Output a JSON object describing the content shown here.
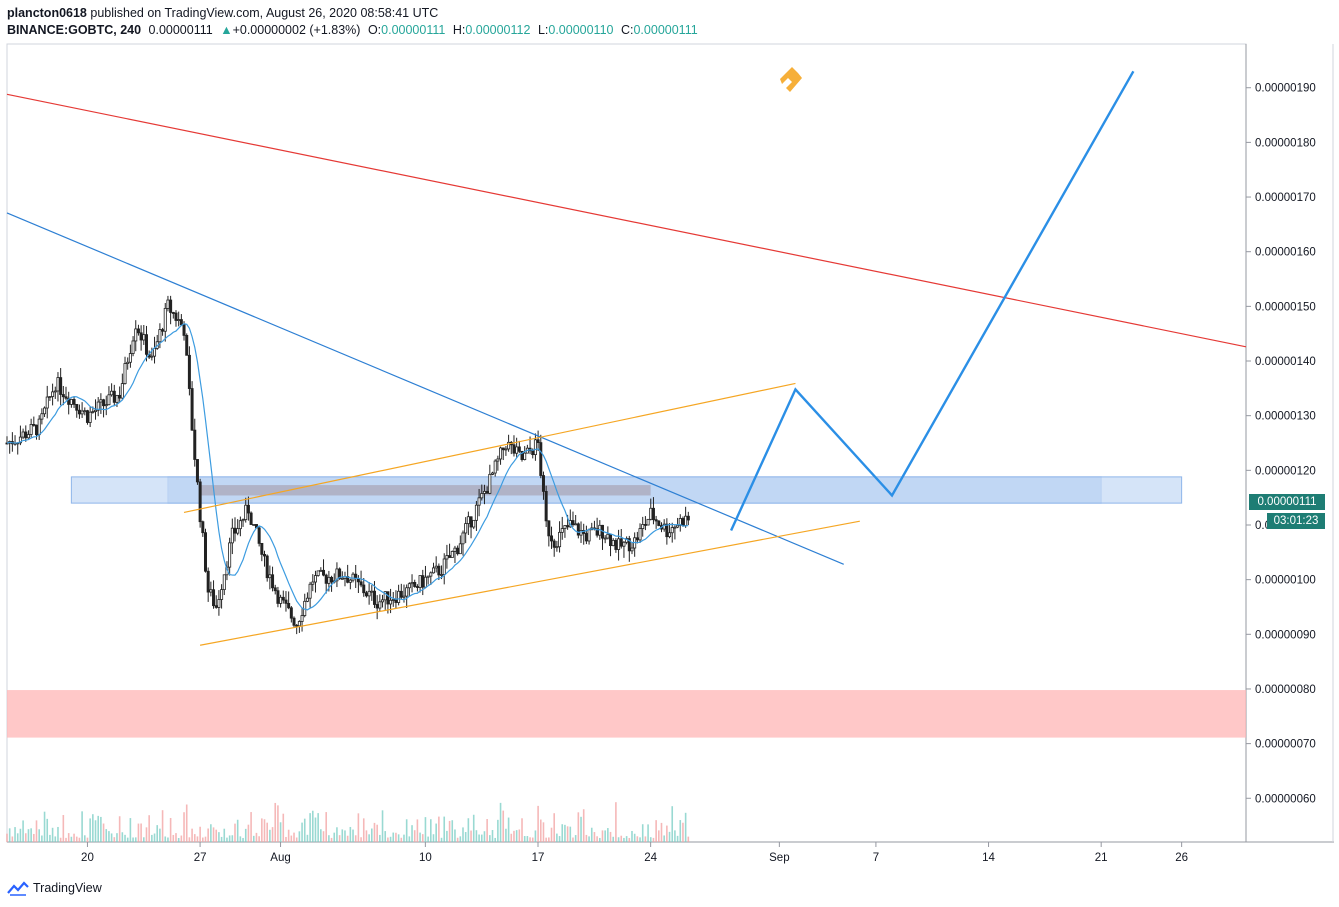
{
  "header": {
    "publisher_line": "plancton0618 published on TradingView.com, August 26, 2020 08:58:41 UTC",
    "publisher_name": "plancton0618",
    "publisher_rest": " published on TradingView.com, August 26, 2020 08:58:41 UTC",
    "symbol": "BINANCE:GOBTC, 240",
    "last_price": "0.00000111",
    "change_arrow": "▲",
    "change": "+0.00000002 (+1.83%)",
    "o_label": "O:",
    "o_value": "0.00000111",
    "h_label": "H:",
    "h_value": "0.00000112",
    "l_label": "L:",
    "l_value": "0.00000110",
    "c_label": "C:",
    "c_value": "0.00000111"
  },
  "price_tag": {
    "value": "0.00000111",
    "countdown": "03:01:23",
    "color": "#1e7d74"
  },
  "footer": {
    "brand": "TradingView",
    "logo_icon": "tradingview-cloud-icon"
  },
  "watermark_icon": "orange-hook-logo-icon",
  "chart_data": {
    "type": "candlestick",
    "symbol": "BINANCE:GOBTC",
    "interval": "240",
    "y_ticks": [
      "0.00000190",
      "0.00000180",
      "0.00000170",
      "0.00000160",
      "0.00000150",
      "0.00000140",
      "0.00000130",
      "0.00000120",
      "0.00000110",
      "0.00000100",
      "0.00000090",
      "0.00000080",
      "0.00000070",
      "0.00000060"
    ],
    "y_tick_values": [
      190,
      180,
      170,
      160,
      150,
      140,
      130,
      120,
      110,
      100,
      90,
      80,
      70,
      60
    ],
    "y_unit_scale": "1e-8 BTC (satoshi)",
    "ylim": [
      52,
      198
    ],
    "x_ticks": [
      "20",
      "27",
      "Aug",
      "10",
      "17",
      "24",
      "Sep",
      "7",
      "14",
      "21",
      "26"
    ],
    "x_tick_dates": [
      "2020-07-20",
      "2020-07-27",
      "2020-08-01",
      "2020-08-10",
      "2020-08-17",
      "2020-08-24",
      "2020-09-01",
      "2020-09-07",
      "2020-09-14",
      "2020-09-21",
      "2020-09-26"
    ],
    "xlim": [
      "2020-07-15",
      "2020-09-30"
    ],
    "price_path_sat": [
      [
        "2020-07-15",
        125
      ],
      [
        "2020-07-17",
        128
      ],
      [
        "2020-07-18",
        136
      ],
      [
        "2020-07-20",
        130
      ],
      [
        "2020-07-22",
        134
      ],
      [
        "2020-07-23",
        147
      ],
      [
        "2020-07-24",
        140
      ],
      [
        "2020-07-25",
        150
      ],
      [
        "2020-07-26",
        146
      ],
      [
        "2020-07-26.5",
        128
      ],
      [
        "2020-07-27",
        112
      ],
      [
        "2020-07-27.5",
        98
      ],
      [
        "2020-07-28",
        95
      ],
      [
        "2020-07-29",
        108
      ],
      [
        "2020-07-30",
        113
      ],
      [
        "2020-07-31",
        103
      ],
      [
        "2020-08-01",
        96
      ],
      [
        "2020-08-02",
        92
      ],
      [
        "2020-08-03",
        100
      ],
      [
        "2020-08-05",
        101
      ],
      [
        "2020-08-07",
        96
      ],
      [
        "2020-08-09",
        98
      ],
      [
        "2020-08-10",
        100
      ],
      [
        "2020-08-11",
        102
      ],
      [
        "2020-08-12",
        106
      ],
      [
        "2020-08-13",
        112
      ],
      [
        "2020-08-14",
        118
      ],
      [
        "2020-08-15",
        125
      ],
      [
        "2020-08-16",
        122
      ],
      [
        "2020-08-17",
        125
      ],
      [
        "2020-08-17.5",
        110
      ],
      [
        "2020-08-18",
        107
      ],
      [
        "2020-08-19",
        110
      ],
      [
        "2020-08-20",
        108
      ],
      [
        "2020-08-21",
        109
      ],
      [
        "2020-08-22",
        106
      ],
      [
        "2020-08-23",
        107
      ],
      [
        "2020-08-24",
        112
      ],
      [
        "2020-08-25",
        109
      ],
      [
        "2020-08-26",
        111
      ]
    ],
    "moving_average_color": "#3d9ce0",
    "volume_note": "volume bars along bottom, peak on 2020-08-17",
    "drawings": [
      {
        "kind": "trendline",
        "color": "#e53935",
        "from": [
          "2020-07-15",
          188.8
        ],
        "to": [
          "2020-09-30",
          142.6
        ]
      },
      {
        "kind": "trendline",
        "color": "#2d7fd3",
        "from": [
          "2020-07-15",
          167.1
        ],
        "to": [
          "2020-09-05",
          102.8
        ]
      },
      {
        "kind": "channel-upper",
        "color": "#f5a623",
        "from": [
          "2020-07-26",
          112.3
        ],
        "to": [
          "2020-09-02",
          135.9
        ]
      },
      {
        "kind": "channel-lower",
        "color": "#f5a623",
        "from": [
          "2020-07-27",
          88.0
        ],
        "to": [
          "2020-09-06",
          110.7
        ]
      },
      {
        "kind": "resistance-zone",
        "color": "#8fb5ea",
        "top": 118.8,
        "bottom": 114.0,
        "from": "2020-07-25",
        "to": "2020-09-21"
      },
      {
        "kind": "resistance-zone-light",
        "color": "#c7dbf5",
        "top": 118.8,
        "bottom": 114.0,
        "from": "2020-07-19",
        "to": "2020-09-26"
      },
      {
        "kind": "grey-box",
        "color": "#a9a7b8",
        "top": 117.3,
        "bottom": 115.4,
        "from": "2020-07-27",
        "to": "2020-08-24"
      },
      {
        "kind": "support-zone",
        "color": "#ffb6b6",
        "top": 79.8,
        "bottom": 71.1,
        "from": "2020-07-15",
        "to": "2020-09-30"
      },
      {
        "kind": "projection",
        "color": "#2b8fe6",
        "points": [
          [
            "2020-08-29",
            109.0
          ],
          [
            "2020-09-02",
            134.8
          ],
          [
            "2020-09-08",
            115.4
          ],
          [
            "2020-09-23",
            193.0
          ]
        ]
      }
    ]
  }
}
